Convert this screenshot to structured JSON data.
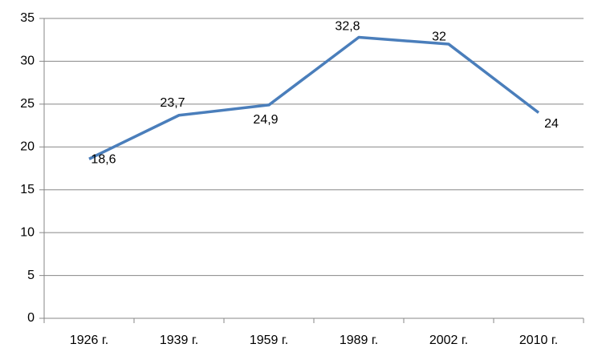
{
  "chart_data": {
    "type": "line",
    "categories": [
      "1926 г.",
      "1939 г.",
      "1959 г.",
      "1989 г.",
      "2002 г.",
      "2010 г."
    ],
    "series": [
      {
        "color": "#4a7ebb",
        "values": [
          18.6,
          23.7,
          24.9,
          32.8,
          32,
          24
        ],
        "value_labels": [
          "18,6",
          "23,7",
          "24,9",
          "32,8",
          "32",
          "24"
        ]
      }
    ],
    "ylim": [
      0,
      35
    ],
    "yticks": [
      0,
      5,
      10,
      15,
      20,
      25,
      30,
      35
    ],
    "grid": true
  }
}
